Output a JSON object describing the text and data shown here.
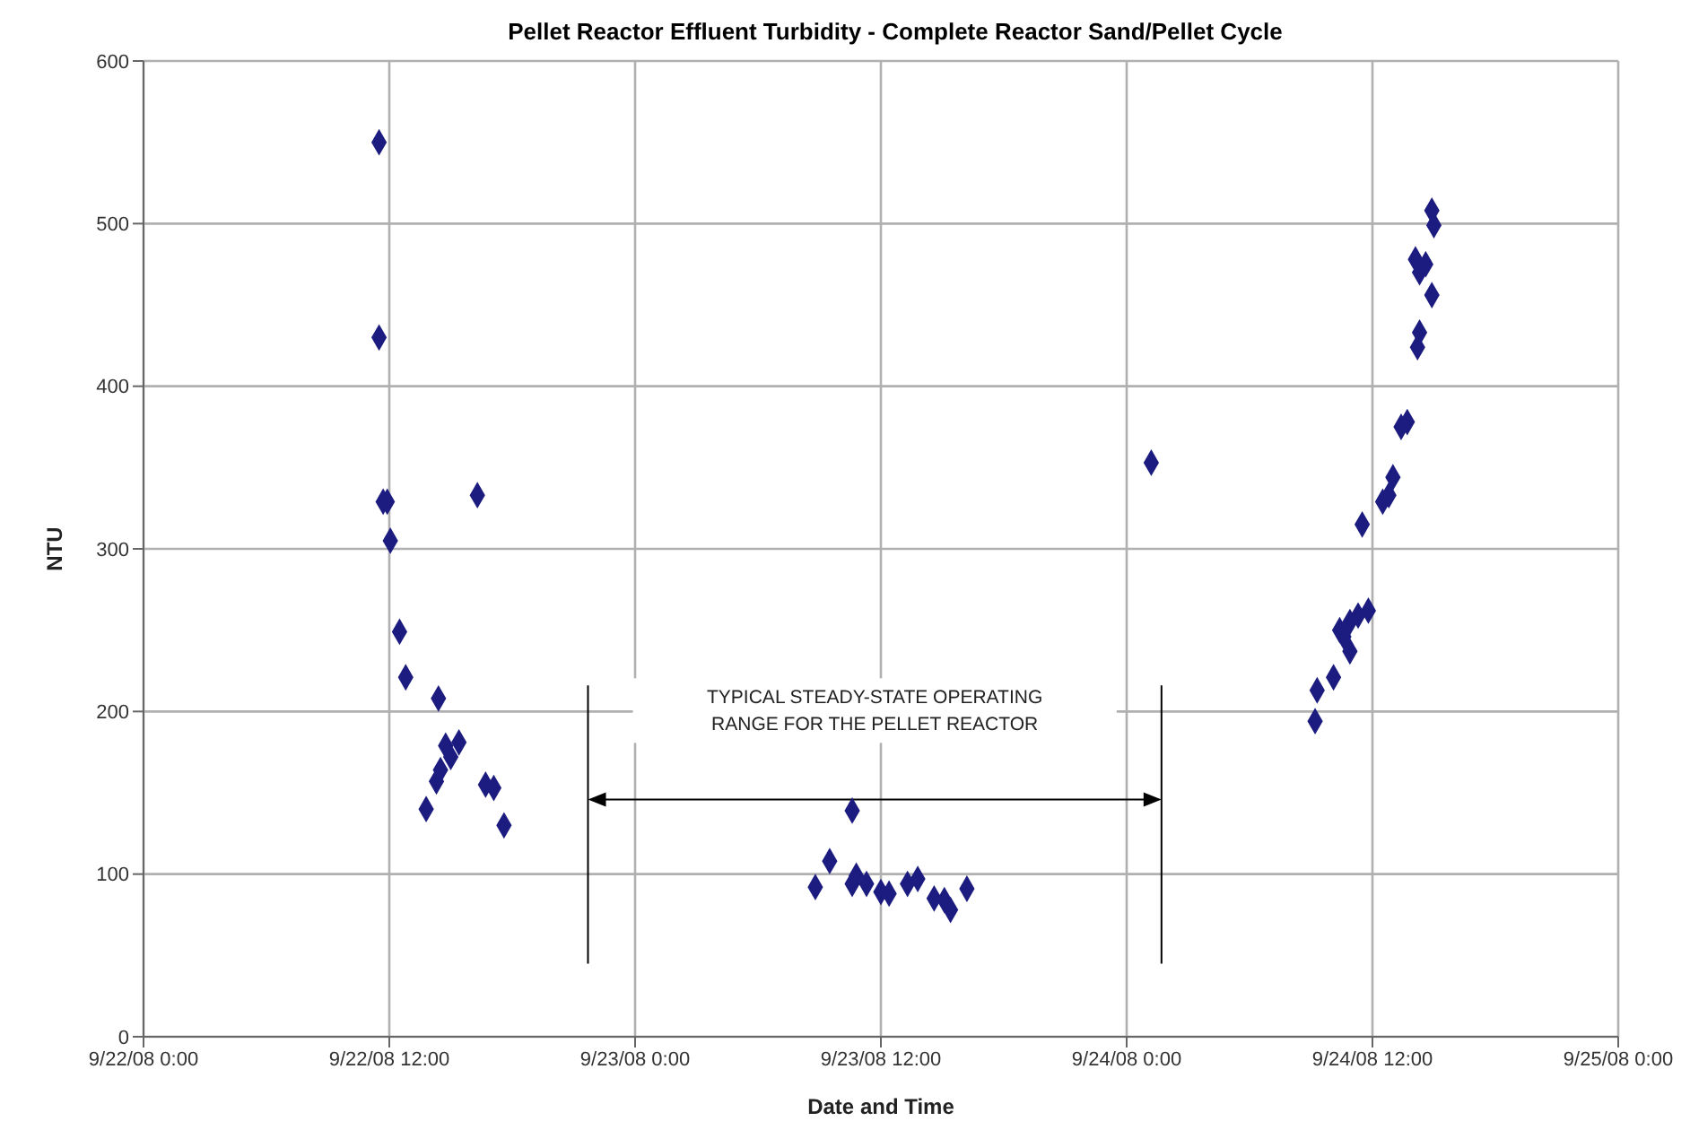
{
  "chart_data": {
    "type": "scatter",
    "title": "Pellet Reactor Effluent Turbidity - Complete Reactor Sand/Pellet Cycle",
    "xlabel": "Date and Time",
    "ylabel": "NTU",
    "series": [
      {
        "color": "#1c1c80",
        "x": [
          "--09-22T11:30",
          "--09-22T11:30",
          "--09-22T11:42",
          "--09-22T11:54",
          "--09-22T12:03",
          "--09-22T12:30",
          "--09-22T12:48",
          "--09-22T13:48",
          "--09-22T14:18",
          "--09-22T14:24",
          "--09-22T14:30",
          "--09-22T14:45",
          "--09-22T15:00",
          "--09-22T15:24",
          "--09-22T16:18",
          "--09-22T16:42",
          "--09-22T17:06",
          "--09-22T17:36",
          "--09-23T08:48",
          "--09-23T09:30",
          "--09-23T10:36",
          "--09-23T10:36",
          "--09-23T10:48",
          "--09-23T11:18",
          "--09-23T12:00",
          "--09-23T12:24",
          "--09-23T13:18",
          "--09-23T13:48",
          "--09-23T14:36",
          "--09-23T15:06",
          "--09-23T15:24",
          "--09-23T16:12",
          "--09-24T01:12",
          "--09-24T09:12",
          "--09-24T09:18",
          "--09-24T10:06",
          "--09-24T10:24",
          "--09-24T10:36",
          "--09-24T10:54",
          "--09-24T10:54",
          "--09-24T11:18",
          "--09-24T11:30",
          "--09-24T11:48",
          "--09-24T12:30",
          "--09-24T12:48",
          "--09-24T13:00",
          "--09-24T13:24",
          "--09-24T13:42",
          "--09-24T14:06",
          "--09-24T14:12",
          "--09-24T14:18",
          "--09-24T14:18",
          "--09-24T14:36",
          "--09-24T14:54",
          "--09-24T14:54",
          "--09-24T15:00"
        ],
        "values": [
          550,
          430,
          329,
          329,
          305,
          249,
          221,
          140,
          157,
          208,
          164,
          179,
          172,
          181,
          333,
          155,
          153,
          130,
          92,
          108,
          139,
          94,
          99,
          94,
          89,
          88,
          94,
          97,
          85,
          84,
          78,
          91,
          353,
          194,
          213,
          221,
          250,
          246,
          255,
          237,
          259,
          315,
          262,
          329,
          333,
          344,
          375,
          378,
          478,
          424,
          470,
          433,
          475,
          508,
          456,
          499
        ]
      }
    ],
    "xlim": [
      "--09-22T00:00",
      "--09-25T00:00"
    ],
    "xticks": [
      {
        "value": "--09-22T00:00",
        "label": "9/22/08 0:00"
      },
      {
        "value": "--09-22T12:00",
        "label": "9/22/08 12:00"
      },
      {
        "value": "--09-23T00:00",
        "label": "9/23/08 0:00"
      },
      {
        "value": "--09-23T12:00",
        "label": "9/23/08 12:00"
      },
      {
        "value": "--09-24T00:00",
        "label": "9/24/08 0:00"
      },
      {
        "value": "--09-24T12:00",
        "label": "9/24/08 12:00"
      },
      {
        "value": "--09-25T00:00",
        "label": "9/25/08 0:00"
      }
    ],
    "ylim": [
      0,
      600
    ],
    "yticks": [
      0,
      100,
      200,
      300,
      400,
      500,
      600
    ],
    "ref_lines": [
      {
        "axis": "x",
        "value": "--09-22T21:42"
      },
      {
        "axis": "x",
        "value": "--09-24T01:42"
      }
    ],
    "annotations": [
      "TYPICAL STEADY-STATE OPERATING RANGE FOR THE PELLET REACTOR"
    ],
    "grid": true,
    "marker": "diamond",
    "legend": false
  }
}
